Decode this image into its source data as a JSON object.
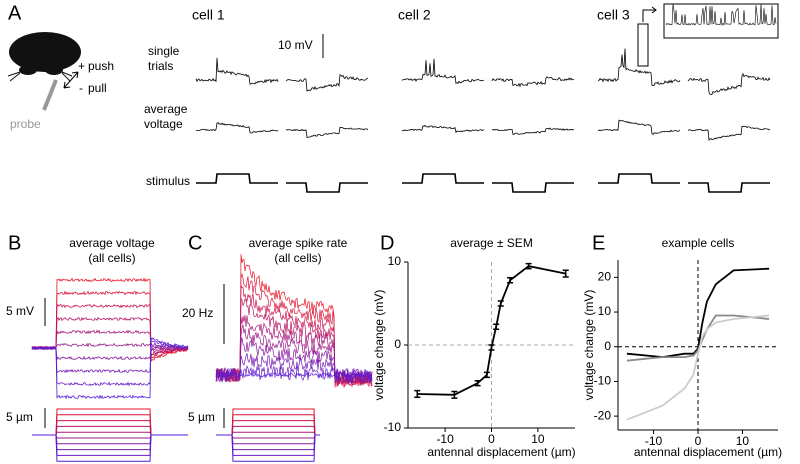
{
  "panels": {
    "A": {
      "label": "A",
      "plus": "+",
      "minus": "-",
      "push": "push",
      "pull": "pull",
      "probe": "probe",
      "cells": [
        "cell 1",
        "cell 2",
        "cell 3"
      ],
      "scale": "10 mV",
      "rows": [
        [
          "single",
          "trials"
        ],
        [
          "average",
          "voltage"
        ],
        [
          "stimulus"
        ]
      ]
    },
    "B": {
      "label": "B",
      "title": [
        "average voltage",
        "(all cells)"
      ],
      "scale": "5 mV",
      "stim_scale": "5 µm"
    },
    "C": {
      "label": "C",
      "title": [
        "average spike rate",
        "(all cells)"
      ],
      "scale": "20 Hz",
      "stim_scale": "5 µm"
    }
  },
  "chart_data": [
    {
      "type": "line",
      "label": "D",
      "title": "average ± SEM",
      "xlabel": "antennal displacement (µm)",
      "ylabel": "voltage change (mV)",
      "x": [
        -16,
        -8,
        -3,
        -1,
        0,
        1,
        2,
        4,
        8,
        16
      ],
      "series": [
        {
          "color": "#000000",
          "values": [
            -5.9,
            -6.0,
            -4.6,
            -3.6,
            -0.3,
            2.2,
            5.0,
            7.8,
            9.5,
            8.6
          ],
          "errors": [
            0.4,
            0.4,
            0.3,
            0.3,
            0.3,
            0.3,
            0.3,
            0.3,
            0.3,
            0.4
          ]
        }
      ],
      "xlim": [
        -18,
        18
      ],
      "ylim": [
        -10,
        10
      ],
      "xticks": [
        -10,
        0,
        10
      ],
      "yticks": [
        -10,
        0,
        10
      ],
      "zero_line_color": "#aaaaaa"
    },
    {
      "type": "line",
      "label": "E",
      "title": "example cells",
      "xlabel": "antennal displacement (µm)",
      "ylabel": "voltage change (mV)",
      "x": [
        -16,
        -8,
        -3,
        -1,
        0,
        1,
        2,
        4,
        8,
        16
      ],
      "series": [
        {
          "color": "#000000",
          "values": [
            -2,
            -3,
            -2,
            -2,
            -0.5,
            7,
            13,
            18,
            22,
            22.5
          ]
        },
        {
          "color": "#888888",
          "values": [
            -4,
            -3,
            -3,
            -2.5,
            -1,
            2,
            5,
            9,
            9,
            8
          ]
        },
        {
          "color": "#cccccc",
          "values": [
            -21,
            -17,
            -12,
            -8,
            -2,
            3,
            5,
            7,
            8,
            9
          ]
        }
      ],
      "xlim": [
        -18,
        18
      ],
      "ylim": [
        -24,
        25
      ],
      "xticks": [
        -10,
        0,
        10
      ],
      "yticks": [
        -20,
        -10,
        0,
        10,
        20
      ],
      "zero_line_color": "#000000"
    }
  ]
}
